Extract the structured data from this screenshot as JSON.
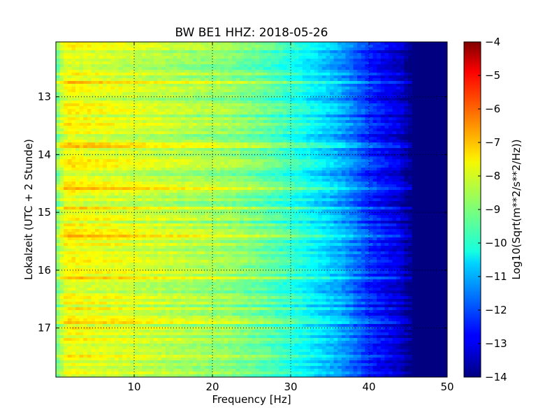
{
  "chart_data": {
    "type": "heatmap",
    "title": "BW BE1 HHZ: 2018-05-26",
    "xlabel": "Frequency [Hz]",
    "ylabel": "Lokalzeit (UTC + 2 Stunde)",
    "xlim": [
      0,
      50
    ],
    "ylim": [
      12.05,
      17.85
    ],
    "y_inverted": true,
    "x_ticks": [
      10,
      20,
      30,
      40,
      50
    ],
    "y_ticks": [
      13,
      14,
      15,
      16,
      17
    ],
    "grid": "dotted",
    "colormap": "jet",
    "colorbar": {
      "label": "Log10(Sqrt(m**2/s**2/Hz))",
      "range": [
        -14,
        -4
      ],
      "ticks": [
        -4,
        -5,
        -6,
        -7,
        -8,
        -9,
        -10,
        -11,
        -12,
        -13,
        -14
      ]
    },
    "spectrum_profile": {
      "frequency_hz": [
        0,
        1,
        2,
        3,
        5,
        8,
        12,
        18,
        22,
        26,
        30,
        33,
        36,
        38,
        40,
        42,
        44,
        45,
        46,
        50
      ],
      "log_amplitude": [
        -9.2,
        -8.0,
        -7.8,
        -7.9,
        -8.0,
        -8.1,
        -8.3,
        -8.6,
        -8.8,
        -9.2,
        -9.8,
        -10.4,
        -11.0,
        -11.6,
        -12.3,
        -12.8,
        -13.2,
        -13.8,
        -14.0,
        -14.0
      ]
    }
  }
}
